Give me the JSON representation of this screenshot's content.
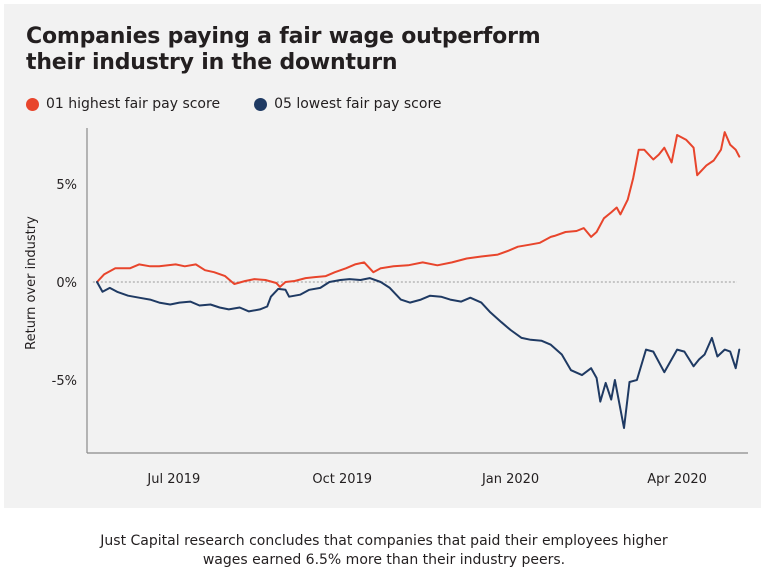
{
  "title": "Companies paying a fair wage outperform their industry in the downturn",
  "legend": [
    {
      "label": "01 highest fair pay score",
      "color": "#e8452c"
    },
    {
      "label": "05 lowest fair pay score",
      "color": "#1f3a63"
    }
  ],
  "caption": {
    "line1": "Just Capital research concludes that companies that paid their employees higher",
    "line2": "wages earned 6.5% more than their industry peers."
  },
  "chart_data": {
    "type": "line",
    "title": "Companies paying a fair wage outperform their industry in the downturn",
    "xlabel": "",
    "ylabel": "Return over industry",
    "x_units": "days since series start",
    "xlim": [
      -5,
      352
    ],
    "ylim": [
      -8.6,
      8.5
    ],
    "yticks": [
      {
        "value": 5,
        "label": "5%"
      },
      {
        "value": 0,
        "label": "0%"
      },
      {
        "value": -5,
        "label": "-5%"
      }
    ],
    "xticks": [
      {
        "value": 42,
        "label": "Jul 2019"
      },
      {
        "value": 134,
        "label": "Oct 2019"
      },
      {
        "value": 226,
        "label": "Jan 2020"
      },
      {
        "value": 317,
        "label": "Apr 2020"
      }
    ],
    "reference_line": {
      "value": 0,
      "style": "dotted"
    },
    "grid": false,
    "legend_position": "top-left",
    "series": [
      {
        "name": "01 highest fair pay score",
        "color": "#e8452c",
        "x": [
          0,
          4,
          10,
          18,
          23,
          29,
          34,
          43,
          48,
          54,
          59,
          64,
          70,
          75,
          81,
          86,
          92,
          98,
          100,
          103,
          108,
          114,
          119,
          125,
          130,
          136,
          141,
          146,
          151,
          155,
          162,
          170,
          178,
          186,
          194,
          202,
          210,
          219,
          225,
          230,
          236,
          242,
          248,
          250,
          256,
          262,
          266,
          270,
          273,
          277,
          281,
          284,
          286,
          290,
          293,
          296,
          299,
          304,
          307,
          310,
          314,
          317,
          322,
          326,
          328,
          333,
          337,
          341,
          343,
          346,
          349,
          351
        ],
        "values": [
          0,
          0.4,
          0.7,
          0.7,
          0.9,
          0.8,
          0.8,
          0.9,
          0.8,
          0.9,
          0.6,
          0.5,
          0.3,
          -0.1,
          0.05,
          0.15,
          0.1,
          -0.05,
          -0.25,
          0,
          0.05,
          0.2,
          0.25,
          0.3,
          0.5,
          0.7,
          0.9,
          1.0,
          0.5,
          0.7,
          0.8,
          0.85,
          1.0,
          0.85,
          1.0,
          1.2,
          1.3,
          1.4,
          1.6,
          1.8,
          1.9,
          2.0,
          2.3,
          2.35,
          2.55,
          2.6,
          2.75,
          2.3,
          2.55,
          3.25,
          3.55,
          3.8,
          3.45,
          4.2,
          5.3,
          6.75,
          6.75,
          6.25,
          6.5,
          6.85,
          6.1,
          7.5,
          7.25,
          6.85,
          5.45,
          5.95,
          6.2,
          6.75,
          7.65,
          7.0,
          6.75,
          6.4
        ]
      },
      {
        "name": "05 lowest fair pay score",
        "color": "#1f3a63",
        "x": [
          0,
          3,
          7,
          11,
          17,
          23,
          29,
          34,
          40,
          45,
          51,
          56,
          62,
          67,
          72,
          78,
          83,
          89,
          93,
          95,
          99,
          103,
          105,
          111,
          116,
          122,
          127,
          133,
          138,
          144,
          149,
          155,
          160,
          166,
          171,
          177,
          182,
          188,
          193,
          199,
          204,
          210,
          215,
          221,
          226,
          232,
          237,
          243,
          248,
          254,
          259,
          265,
          270,
          273,
          275,
          278,
          281,
          283,
          285,
          288,
          291,
          295,
          300,
          304,
          310,
          314,
          317,
          321,
          326,
          329,
          332,
          336,
          339,
          343,
          346,
          349,
          351
        ],
        "values": [
          0,
          -0.5,
          -0.3,
          -0.5,
          -0.7,
          -0.8,
          -0.9,
          -1.05,
          -1.15,
          -1.05,
          -1.0,
          -1.2,
          -1.15,
          -1.3,
          -1.4,
          -1.3,
          -1.5,
          -1.4,
          -1.25,
          -0.75,
          -0.35,
          -0.4,
          -0.75,
          -0.65,
          -0.4,
          -0.3,
          0,
          0.1,
          0.15,
          0.1,
          0.2,
          0,
          -0.3,
          -0.9,
          -1.05,
          -0.9,
          -0.7,
          -0.75,
          -0.9,
          -1.0,
          -0.8,
          -1.05,
          -1.55,
          -2.05,
          -2.45,
          -2.85,
          -2.95,
          -3.0,
          -3.2,
          -3.7,
          -4.5,
          -4.75,
          -4.4,
          -4.9,
          -6.1,
          -5.15,
          -6.0,
          -5.0,
          -6.0,
          -7.45,
          -5.1,
          -5.0,
          -3.45,
          -3.55,
          -4.6,
          -3.95,
          -3.45,
          -3.55,
          -4.3,
          -3.95,
          -3.7,
          -2.85,
          -3.8,
          -3.45,
          -3.55,
          -4.4,
          -3.45
        ]
      }
    ]
  }
}
